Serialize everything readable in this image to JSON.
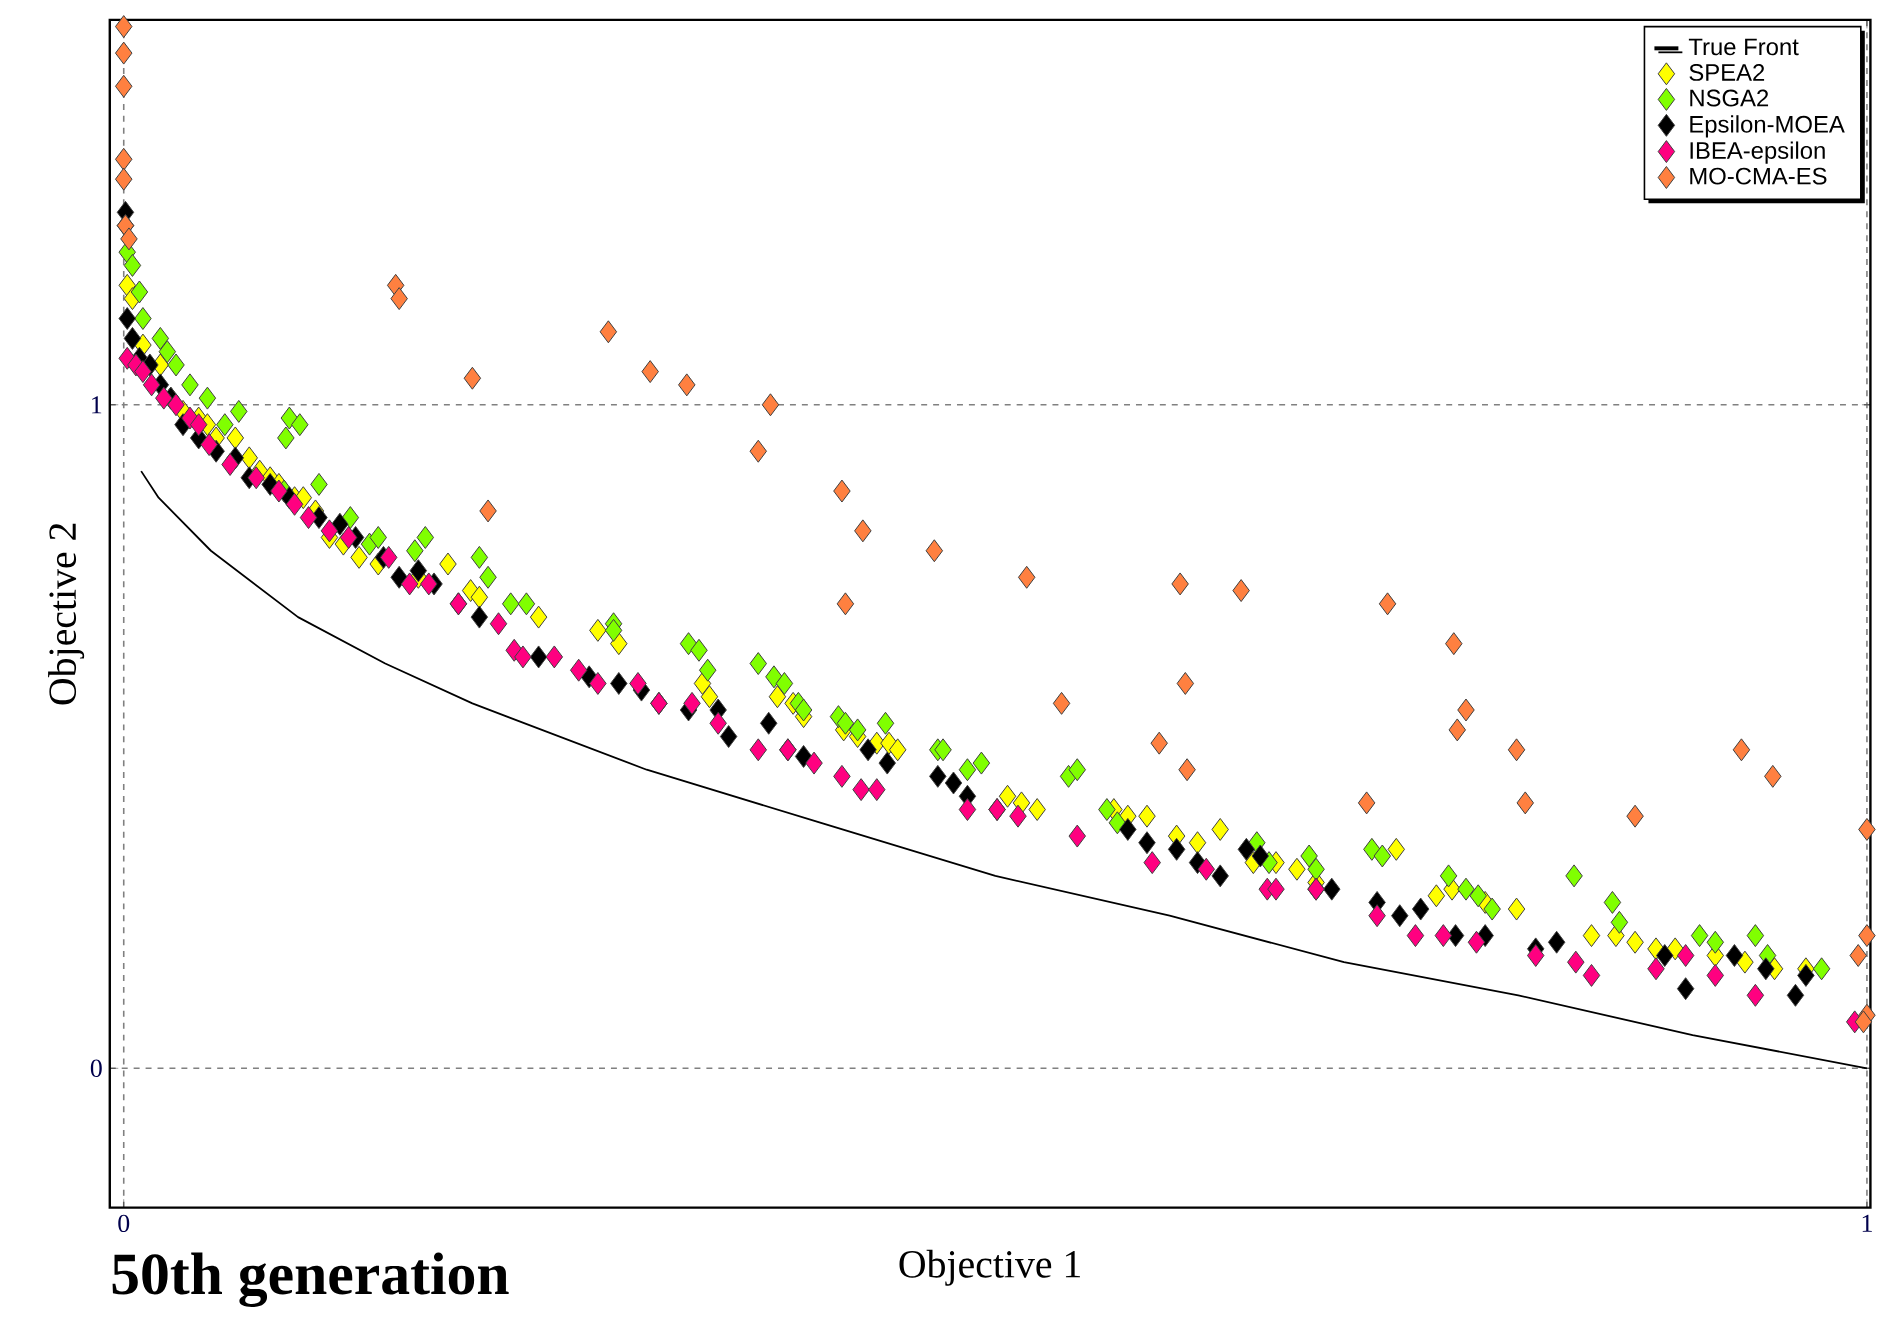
{
  "chart_data": {
    "type": "scatter",
    "xlabel": "Objective 1",
    "ylabel": "Objective 2",
    "annotations": [
      "50th generation"
    ],
    "xlim": [
      -0.008,
      1.002
    ],
    "ylim": [
      -0.21,
      1.58
    ],
    "xticks": [
      0,
      1
    ],
    "yticks": [
      0,
      1
    ],
    "grid": true,
    "legend": "top right",
    "marker": "diamond",
    "series": [
      {
        "name": "True Front",
        "type": "line",
        "marker": "none",
        "color": "#000000",
        "x": [
          0.01,
          0.02,
          0.05,
          0.1,
          0.15,
          0.2,
          0.3,
          0.4,
          0.5,
          0.6,
          0.7,
          0.8,
          0.9,
          1.0
        ],
        "values": [
          0.9,
          0.86,
          0.78,
          0.68,
          0.61,
          0.55,
          0.45,
          0.37,
          0.29,
          0.23,
          0.16,
          0.11,
          0.05,
          0.0
        ]
      },
      {
        "name": "SPEA2",
        "color": "#ffff00",
        "x": [
          0.002,
          0.005,
          0.011,
          0.021,
          0.027,
          0.034,
          0.043,
          0.048,
          0.053,
          0.064,
          0.072,
          0.078,
          0.084,
          0.089,
          0.098,
          0.103,
          0.11,
          0.118,
          0.126,
          0.135,
          0.146,
          0.169,
          0.186,
          0.199,
          0.204,
          0.238,
          0.272,
          0.284,
          0.332,
          0.336,
          0.375,
          0.384,
          0.39,
          0.413,
          0.421,
          0.432,
          0.439,
          0.444,
          0.507,
          0.515,
          0.524,
          0.568,
          0.576,
          0.587,
          0.604,
          0.616,
          0.629,
          0.648,
          0.661,
          0.673,
          0.684,
          0.73,
          0.753,
          0.762,
          0.781,
          0.799,
          0.842,
          0.856,
          0.867,
          0.879,
          0.89,
          0.913,
          0.93,
          0.947,
          0.965
        ],
        "values": [
          1.18,
          1.16,
          1.09,
          1.06,
          1.01,
          0.99,
          0.98,
          0.97,
          0.95,
          0.95,
          0.92,
          0.9,
          0.89,
          0.88,
          0.86,
          0.86,
          0.84,
          0.8,
          0.79,
          0.77,
          0.76,
          0.74,
          0.76,
          0.72,
          0.71,
          0.68,
          0.66,
          0.64,
          0.58,
          0.56,
          0.56,
          0.55,
          0.53,
          0.51,
          0.5,
          0.49,
          0.49,
          0.48,
          0.41,
          0.4,
          0.39,
          0.39,
          0.38,
          0.38,
          0.35,
          0.34,
          0.36,
          0.31,
          0.31,
          0.3,
          0.28,
          0.33,
          0.26,
          0.27,
          0.25,
          0.24,
          0.2,
          0.2,
          0.19,
          0.18,
          0.18,
          0.17,
          0.16,
          0.15,
          0.15
        ]
      },
      {
        "name": "NSGA2",
        "color": "#80ff00",
        "x": [
          0.002,
          0.005,
          0.009,
          0.011,
          0.021,
          0.025,
          0.03,
          0.038,
          0.048,
          0.058,
          0.066,
          0.093,
          0.095,
          0.101,
          0.092,
          0.112,
          0.13,
          0.141,
          0.146,
          0.167,
          0.173,
          0.204,
          0.209,
          0.222,
          0.231,
          0.281,
          0.281,
          0.324,
          0.33,
          0.335,
          0.364,
          0.373,
          0.379,
          0.387,
          0.39,
          0.41,
          0.414,
          0.421,
          0.437,
          0.467,
          0.47,
          0.484,
          0.492,
          0.542,
          0.547,
          0.564,
          0.57,
          0.65,
          0.657,
          0.68,
          0.684,
          0.716,
          0.722,
          0.76,
          0.77,
          0.777,
          0.785,
          0.832,
          0.854,
          0.858,
          0.904,
          0.913,
          0.936,
          0.943,
          0.974
        ],
        "values": [
          1.23,
          1.21,
          1.17,
          1.13,
          1.1,
          1.08,
          1.06,
          1.03,
          1.01,
          0.97,
          0.99,
          0.95,
          0.98,
          0.97,
          0.87,
          0.88,
          0.83,
          0.79,
          0.8,
          0.78,
          0.8,
          0.77,
          0.74,
          0.7,
          0.7,
          0.67,
          0.66,
          0.64,
          0.63,
          0.6,
          0.61,
          0.59,
          0.58,
          0.55,
          0.54,
          0.53,
          0.52,
          0.51,
          0.52,
          0.48,
          0.48,
          0.45,
          0.46,
          0.44,
          0.45,
          0.39,
          0.37,
          0.34,
          0.31,
          0.32,
          0.3,
          0.33,
          0.32,
          0.29,
          0.27,
          0.26,
          0.24,
          0.29,
          0.25,
          0.22,
          0.2,
          0.19,
          0.2,
          0.17,
          0.15
        ]
      },
      {
        "name": "Epsilon-MOEA",
        "color": "#000000",
        "x": [
          0.001,
          0.001,
          0.002,
          0.005,
          0.009,
          0.015,
          0.021,
          0.027,
          0.034,
          0.043,
          0.053,
          0.064,
          0.072,
          0.084,
          0.095,
          0.112,
          0.124,
          0.133,
          0.149,
          0.158,
          0.169,
          0.178,
          0.192,
          0.204,
          0.238,
          0.267,
          0.284,
          0.297,
          0.307,
          0.324,
          0.341,
          0.347,
          0.37,
          0.381,
          0.39,
          0.427,
          0.438,
          0.467,
          0.476,
          0.484,
          0.501,
          0.576,
          0.587,
          0.604,
          0.616,
          0.629,
          0.644,
          0.652,
          0.684,
          0.693,
          0.719,
          0.732,
          0.744,
          0.764,
          0.781,
          0.81,
          0.822,
          0.884,
          0.896,
          0.924,
          0.942,
          0.965,
          0.959
        ],
        "values": [
          1.29,
          1.27,
          1.13,
          1.1,
          1.07,
          1.06,
          1.03,
          1.01,
          0.97,
          0.95,
          0.93,
          0.92,
          0.89,
          0.88,
          0.86,
          0.83,
          0.82,
          0.8,
          0.77,
          0.74,
          0.75,
          0.73,
          0.7,
          0.68,
          0.62,
          0.59,
          0.58,
          0.57,
          0.55,
          0.54,
          0.54,
          0.5,
          0.52,
          0.48,
          0.47,
          0.48,
          0.46,
          0.44,
          0.43,
          0.41,
          0.39,
          0.36,
          0.34,
          0.33,
          0.31,
          0.29,
          0.33,
          0.32,
          0.27,
          0.27,
          0.25,
          0.23,
          0.24,
          0.2,
          0.2,
          0.18,
          0.19,
          0.17,
          0.12,
          0.17,
          0.15,
          0.14,
          0.11
        ]
      },
      {
        "name": "IBEA-epsilon",
        "color": "#ff0080",
        "x": [
          0.002,
          0.007,
          0.011,
          0.016,
          0.023,
          0.03,
          0.038,
          0.043,
          0.049,
          0.061,
          0.076,
          0.089,
          0.098,
          0.106,
          0.118,
          0.129,
          0.152,
          0.164,
          0.175,
          0.192,
          0.215,
          0.224,
          0.229,
          0.247,
          0.261,
          0.272,
          0.295,
          0.307,
          0.326,
          0.341,
          0.364,
          0.381,
          0.396,
          0.412,
          0.423,
          0.432,
          0.484,
          0.501,
          0.513,
          0.547,
          0.59,
          0.621,
          0.656,
          0.661,
          0.684,
          0.719,
          0.741,
          0.757,
          0.776,
          0.81,
          0.833,
          0.842,
          0.879,
          0.896,
          0.913,
          0.936,
          0.993
        ],
        "values": [
          1.07,
          1.06,
          1.05,
          1.03,
          1.01,
          1.0,
          0.98,
          0.97,
          0.94,
          0.91,
          0.89,
          0.87,
          0.85,
          0.83,
          0.81,
          0.8,
          0.77,
          0.73,
          0.73,
          0.7,
          0.67,
          0.63,
          0.62,
          0.62,
          0.6,
          0.58,
          0.58,
          0.55,
          0.55,
          0.52,
          0.48,
          0.48,
          0.46,
          0.44,
          0.42,
          0.42,
          0.39,
          0.39,
          0.38,
          0.35,
          0.31,
          0.3,
          0.27,
          0.27,
          0.27,
          0.23,
          0.2,
          0.2,
          0.19,
          0.17,
          0.16,
          0.14,
          0.15,
          0.17,
          0.14,
          0.11,
          0.07
        ]
      },
      {
        "name": "MO-CMA-ES",
        "color": "#ff8040",
        "x": [
          0.0,
          0.0,
          0.0,
          0.0,
          0.0,
          0.001,
          0.003,
          0.156,
          0.158,
          0.2,
          0.278,
          0.302,
          0.323,
          0.371,
          0.364,
          0.209,
          0.412,
          0.424,
          0.465,
          0.518,
          0.414,
          0.538,
          0.606,
          0.641,
          0.594,
          0.609,
          0.61,
          0.725,
          0.763,
          0.77,
          0.765,
          0.799,
          0.804,
          0.713,
          0.867,
          0.928,
          0.946,
          1.0,
          1.0,
          0.995,
          1.0,
          0.998
        ],
        "values": [
          1.57,
          1.53,
          1.48,
          1.37,
          1.34,
          1.27,
          1.25,
          1.18,
          1.16,
          1.04,
          1.11,
          1.05,
          1.03,
          1.0,
          0.93,
          0.84,
          0.87,
          0.81,
          0.78,
          0.74,
          0.7,
          0.55,
          0.73,
          0.72,
          0.49,
          0.58,
          0.45,
          0.7,
          0.64,
          0.54,
          0.51,
          0.48,
          0.4,
          0.4,
          0.38,
          0.48,
          0.44,
          0.36,
          0.2,
          0.17,
          0.08,
          0.07
        ]
      }
    ]
  }
}
